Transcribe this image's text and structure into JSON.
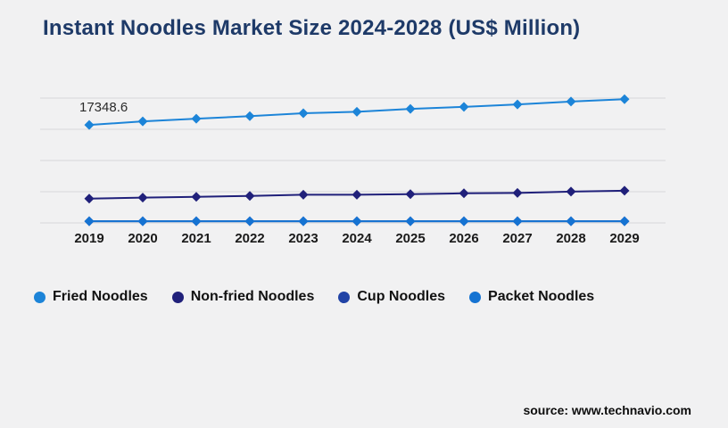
{
  "title": "Instant Noodles Market Size 2024-2028 (US$ Million)",
  "source": "source: www.technavio.com",
  "chart_data": {
    "type": "line",
    "title": "Instant Noodles Market Size 2024-2028 (US$ Million)",
    "xlabel": "",
    "ylabel": "",
    "categories": [
      "2019",
      "2020",
      "2021",
      "2022",
      "2023",
      "2024",
      "2025",
      "2026",
      "2027",
      "2028",
      "2029"
    ],
    "series": [
      {
        "name": "Fried Noodles",
        "color": "#1c84d8",
        "marker": "diamond",
        "values": [
          17348.6,
          17970,
          18440,
          18900,
          19410,
          19680,
          20190,
          20550,
          20970,
          21480,
          21900
        ]
      },
      {
        "name": "Non-fried Noodles",
        "color": "#20207a",
        "marker": "diamond",
        "values": [
          4300,
          4480,
          4620,
          4780,
          4990,
          5000,
          5090,
          5240,
          5300,
          5550,
          5700
        ]
      },
      {
        "name": "Cup Noodles",
        "color": "#2143a6",
        "marker": "diamond",
        "values": [
          300,
          300,
          300,
          300,
          300,
          300,
          300,
          300,
          300,
          300,
          300
        ]
      },
      {
        "name": "Packet Noodles",
        "color": "#1573d2",
        "marker": "diamond",
        "values": [
          300,
          300,
          300,
          300,
          300,
          300,
          300,
          300,
          300,
          300,
          300
        ]
      }
    ],
    "data_label": {
      "series": "Fried Noodles",
      "category": "2019",
      "text": "17348.6"
    },
    "ylim": [
      0,
      22100
    ],
    "grid": "horizontal",
    "gridline_count": 5,
    "legend_position": "bottom",
    "axis_tick_color": "#1a1a1a",
    "gridline_color": "#d7d7d9",
    "background_color": "#f1f1f2"
  }
}
